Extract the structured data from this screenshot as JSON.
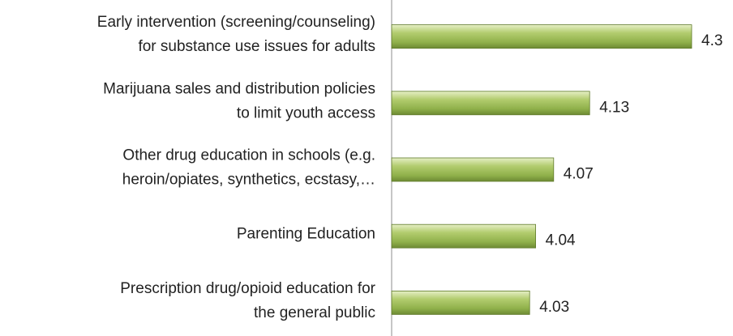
{
  "chart_data": {
    "type": "bar",
    "orientation": "horizontal",
    "categories": [
      [
        "Early intervention (screening/counseling)",
        "for substance use issues for adults"
      ],
      [
        "Marijuana sales and distribution policies",
        "to limit youth access"
      ],
      [
        "Other drug education in schools (e.g.",
        "heroin/opiates, synthetics, ecstasy,…"
      ],
      [
        "Parenting Education"
      ],
      [
        "Prescription drug/opioid education for",
        "the general public"
      ]
    ],
    "values": [
      4.3,
      4.13,
      4.07,
      4.04,
      4.03
    ],
    "color": "#9bbb59",
    "xlim": [
      3.8,
      4.35
    ]
  }
}
